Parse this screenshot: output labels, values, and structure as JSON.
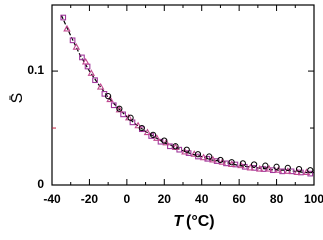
{
  "chart_data": {
    "type": "scatter",
    "x_label": {
      "symbol": "T",
      "unit": "(°C)"
    },
    "y_label": "S̄",
    "xlim": [
      -40,
      100
    ],
    "xticks": [
      -40,
      -20,
      0,
      20,
      40,
      60,
      80,
      100
    ],
    "x_minor_ticks": [
      -30,
      -10,
      10,
      30,
      50,
      70,
      90
    ],
    "ylim": [
      0,
      0.158
    ],
    "yticks": [
      0,
      0.1
    ],
    "y_minor_ticks": [
      0.05
    ],
    "series": [
      {
        "marker": "line",
        "color": "#000000",
        "dashed": true,
        "x": [
          -35,
          -30,
          -25,
          -20,
          -15,
          -10,
          -5,
          0,
          5,
          10,
          15,
          20,
          25,
          30,
          35,
          40,
          45,
          50,
          55,
          60,
          65,
          70,
          75,
          80,
          85,
          90,
          95,
          100
        ],
        "values": [
          0.149,
          0.131,
          0.114,
          0.1,
          0.088,
          0.077,
          0.068,
          0.06,
          0.053,
          0.047,
          0.042,
          0.037,
          0.034,
          0.03,
          0.027,
          0.025,
          0.022,
          0.021,
          0.019,
          0.017,
          0.016,
          0.015,
          0.014,
          0.013,
          0.013,
          0.012,
          0.011,
          0.011
        ]
      },
      {
        "marker": "square",
        "color": "#a0389c",
        "x": [
          -34,
          -29,
          -24,
          -21,
          -17,
          -12,
          -7,
          -2,
          3,
          8,
          13,
          18,
          23,
          28,
          33,
          38,
          43,
          48,
          53,
          58,
          63,
          68,
          73,
          78,
          83,
          88,
          93,
          98
        ],
        "values": [
          0.147,
          0.127,
          0.112,
          0.104,
          0.092,
          0.08,
          0.07,
          0.062,
          0.055,
          0.049,
          0.043,
          0.038,
          0.034,
          0.031,
          0.028,
          0.025,
          0.023,
          0.021,
          0.019,
          0.018,
          0.016,
          0.015,
          0.014,
          0.013,
          0.012,
          0.012,
          0.011,
          0.01
        ]
      },
      {
        "marker": "triangle",
        "color": "#c04890",
        "x": [
          -32,
          -27,
          -22,
          -19,
          -14,
          -9,
          -4,
          1,
          6,
          11,
          16,
          21,
          26,
          31,
          36,
          41,
          46,
          51,
          56,
          61,
          66,
          71,
          76,
          81,
          86,
          91,
          96
        ],
        "values": [
          0.137,
          0.121,
          0.108,
          0.098,
          0.086,
          0.075,
          0.066,
          0.059,
          0.052,
          0.046,
          0.041,
          0.037,
          0.033,
          0.029,
          0.027,
          0.024,
          0.022,
          0.02,
          0.018,
          0.017,
          0.015,
          0.014,
          0.014,
          0.013,
          0.012,
          0.011,
          0.011
        ]
      },
      {
        "marker": "circle",
        "color": "#000000",
        "x": [
          -10,
          -4,
          2,
          8,
          14,
          20,
          26,
          32,
          38,
          44,
          50,
          56,
          62,
          68,
          74,
          80,
          86,
          92,
          98
        ],
        "values": [
          0.078,
          0.067,
          0.059,
          0.05,
          0.044,
          0.039,
          0.034,
          0.031,
          0.027,
          0.025,
          0.022,
          0.02,
          0.019,
          0.018,
          0.017,
          0.016,
          0.015,
          0.014,
          0.013
        ]
      }
    ]
  }
}
